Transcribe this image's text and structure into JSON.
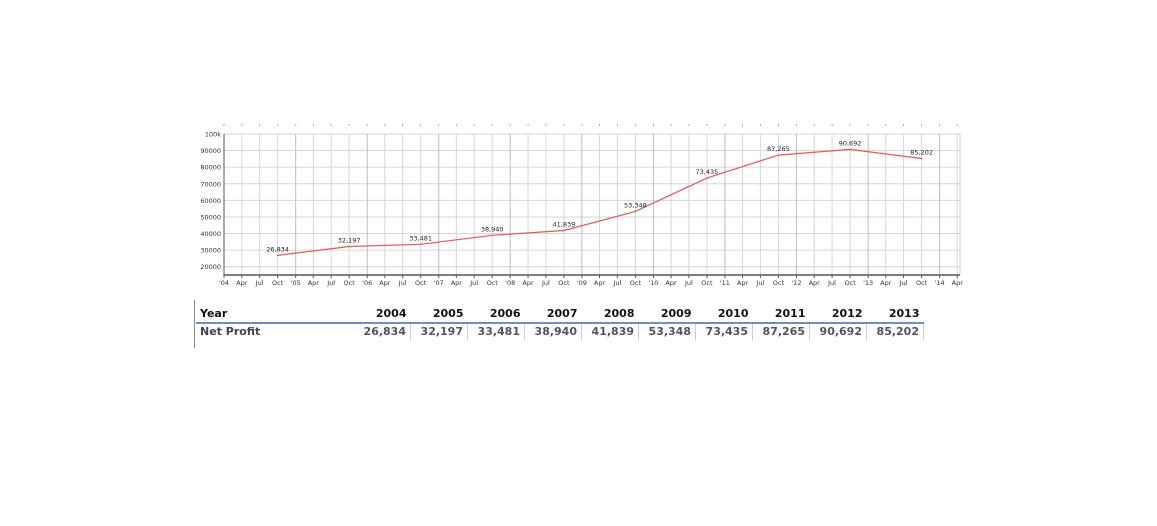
{
  "chart_data": {
    "type": "line",
    "x": [
      "2004-10-01",
      "2005-10-01",
      "2006-10-01",
      "2007-10-01",
      "2008-10-01",
      "2009-10-01",
      "2010-10-01",
      "2011-10-01",
      "2012-10-01",
      "2013-10-01"
    ],
    "series": [
      {
        "values": [
          26834,
          32197,
          33481,
          38940,
          41839,
          53348,
          73435,
          87265,
          90692,
          85202
        ],
        "color": "#e8575a"
      }
    ],
    "ylim": [
      15000,
      100000
    ],
    "yticks": [
      {
        "v": 20000,
        "label": "20000"
      },
      {
        "v": 30000,
        "label": "30000"
      },
      {
        "v": 40000,
        "label": "40000"
      },
      {
        "v": 50000,
        "label": "50000"
      },
      {
        "v": 60000,
        "label": "60000"
      },
      {
        "v": 70000,
        "label": "70000"
      },
      {
        "v": 80000,
        "label": "80000"
      },
      {
        "v": 90000,
        "label": "90000"
      },
      {
        "v": 100000,
        "label": "100k"
      }
    ],
    "xlim": [
      "2004-01-01",
      "2014-04-15"
    ],
    "xticks_start": "2004-01-01",
    "xticks_count": 42,
    "month_labels": {
      "1": "",
      "4": "Apr",
      "7": "Jul",
      "10": "Oct"
    },
    "year_label_prefix": "'",
    "data_labels": [
      "26,834",
      "32,197",
      "33,481",
      "38,940",
      "41,839",
      "53,348",
      "73,435",
      "87,265",
      "90,692",
      "85,202"
    ],
    "grid": true,
    "axis_colors": {
      "grid": "#d6d6d6",
      "axis": "#555555"
    }
  },
  "table": {
    "header_label": "Year",
    "years": [
      "2004",
      "2005",
      "2006",
      "2007",
      "2008",
      "2009",
      "2010",
      "2011",
      "2012",
      "2013"
    ],
    "row_label": "Net Profit",
    "values": [
      "26,834",
      "32,197",
      "33,481",
      "38,940",
      "41,839",
      "53,348",
      "73,435",
      "87,265",
      "90,692",
      "85,202"
    ]
  }
}
